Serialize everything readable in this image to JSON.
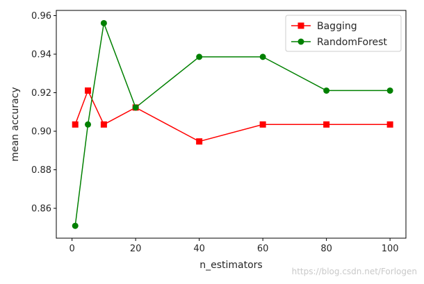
{
  "chart_data": {
    "type": "line",
    "xlabel": "n_estimators",
    "ylabel": "mean accuracy",
    "xlim": [
      -4.95,
      105
    ],
    "ylim": [
      0.8445,
      0.9627
    ],
    "x_ticks": [
      "0",
      "20",
      "40",
      "60",
      "80",
      "100"
    ],
    "y_ticks": [
      "0.86",
      "0.88",
      "0.90",
      "0.92",
      "0.94",
      "0.96"
    ],
    "grid": false,
    "legend_position": "top-right",
    "x": [
      1,
      5,
      10,
      20,
      40,
      60,
      80,
      100
    ],
    "series": [
      {
        "name": "Bagging",
        "color": "#ff0000",
        "marker": "square",
        "values": [
          0.9035,
          0.9211,
          0.9035,
          0.9123,
          0.8947,
          0.9035,
          0.9035,
          0.9035
        ]
      },
      {
        "name": "RandomForest",
        "color": "#008000",
        "marker": "circle",
        "values": [
          0.8509,
          0.9035,
          0.9561,
          0.9123,
          0.9386,
          0.9386,
          0.9211,
          0.9211
        ]
      }
    ]
  },
  "watermark": "https://blog.csdn.net/Forlogen"
}
